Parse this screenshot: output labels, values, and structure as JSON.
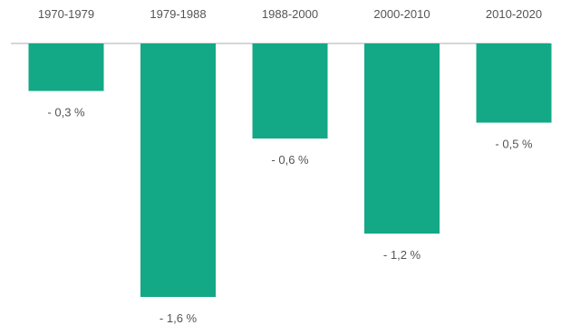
{
  "chart_data": {
    "type": "bar",
    "title": "",
    "xlabel": "",
    "ylabel": "",
    "categories": [
      "1970-1979",
      "1979-1988",
      "1988-2000",
      "2000-2010",
      "2010-2020"
    ],
    "values": [
      -0.3,
      -1.6,
      -0.6,
      -1.2,
      -0.5
    ],
    "value_labels": [
      "- 0,3 %",
      "- 1,6 %",
      "- 0,6 %",
      "- 1,2 %",
      "- 0,5 %"
    ],
    "ylim": [
      -1.6,
      0
    ],
    "grid": false,
    "legend": "none",
    "category_position": "top",
    "bar_color": "#13a886",
    "axis_color": "#c8c8c8",
    "text_color": "#555555"
  }
}
